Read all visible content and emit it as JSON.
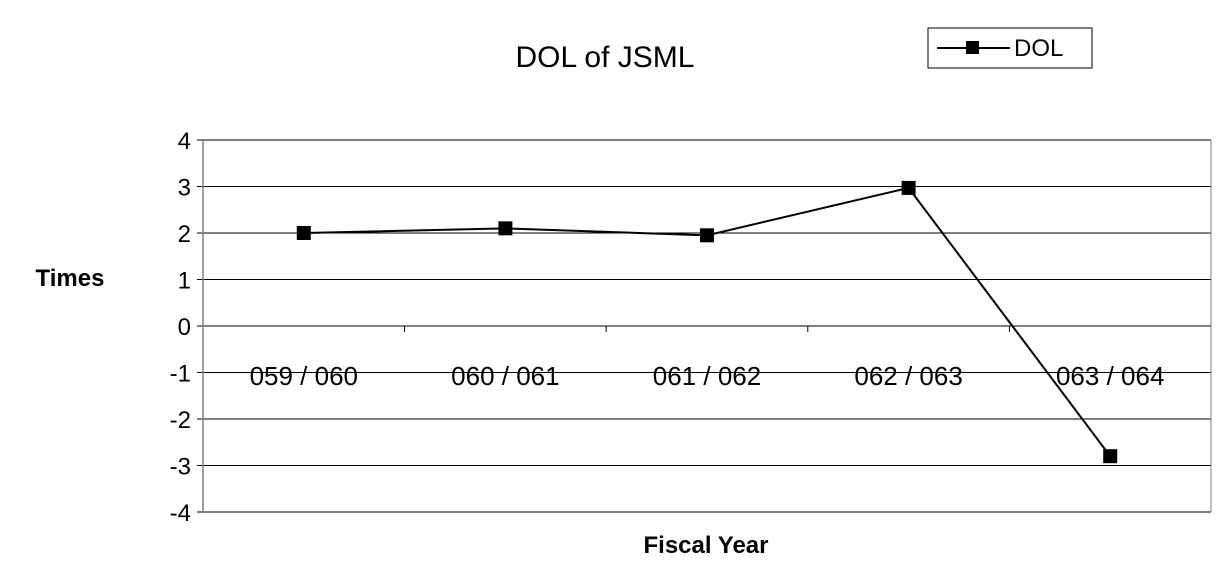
{
  "chart_data": {
    "type": "line",
    "title": "DOL of JSML",
    "xlabel": "Fiscal Year",
    "ylabel": "Times",
    "categories": [
      "059 / 060",
      "060 / 061",
      "061 / 062",
      "062 / 063",
      "063 / 064"
    ],
    "series": [
      {
        "name": "DOL",
        "values": [
          2.0,
          2.1,
          1.95,
          2.97,
          -2.8
        ],
        "color": "#000000",
        "marker": "square"
      }
    ],
    "ylim": [
      -4,
      4
    ],
    "yticks": [
      "4",
      "3",
      "2",
      "1",
      "0",
      "-1",
      "-2",
      "-3",
      "-4"
    ],
    "grid": true,
    "legend": "top-right"
  }
}
